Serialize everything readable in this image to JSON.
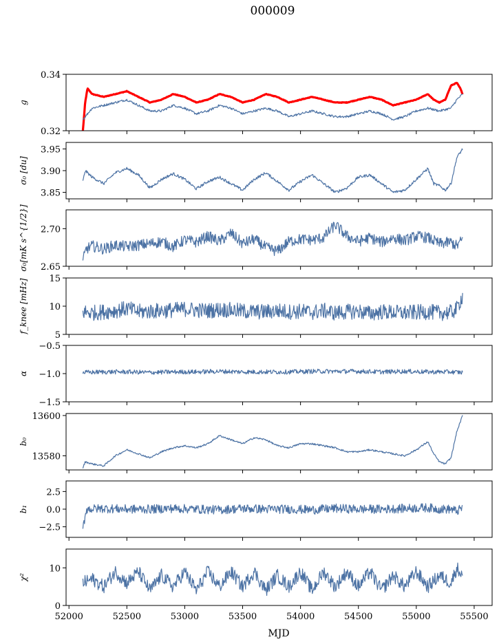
{
  "title": "000009",
  "xlabel": "MJD",
  "chart_data": {
    "type": "line",
    "title": "000009",
    "x_axis": {
      "label": "MJD",
      "range": [
        51975,
        55655
      ],
      "ticks": [
        52000,
        52500,
        53000,
        53500,
        54000,
        54500,
        55000,
        55500
      ],
      "tick_labels": [
        "52000",
        "52500",
        "53000",
        "53500",
        "54000",
        "54500",
        "55000",
        "55500"
      ]
    },
    "series_color": "#4c72a4",
    "data_x_range": [
      52120,
      55400
    ],
    "panels": [
      {
        "ylabel": "g",
        "ylim": [
          0.32,
          0.34
        ],
        "ticks": [
          0.32,
          0.34
        ],
        "tick_labels": [
          "0.32",
          "0.34"
        ],
        "series": [
          {
            "color": "#ff0000",
            "x": [
              52120,
              52140,
              52160,
              52200,
              52300,
              52400,
              52500,
              52600,
              52700,
              52800,
              52900,
              53000,
              53100,
              53200,
              53300,
              53400,
              53500,
              53600,
              53700,
              53800,
              53900,
              54000,
              54100,
              54200,
              54300,
              54400,
              54500,
              54600,
              54700,
              54800,
              54900,
              55000,
              55100,
              55150,
              55200,
              55250,
              55300,
              55350,
              55380,
              55400
            ],
            "y": [
              0.32,
              0.33,
              0.335,
              0.333,
              0.332,
              0.333,
              0.334,
              0.332,
              0.33,
              0.331,
              0.333,
              0.332,
              0.33,
              0.331,
              0.333,
              0.332,
              0.33,
              0.331,
              0.333,
              0.332,
              0.33,
              0.331,
              0.332,
              0.331,
              0.33,
              0.33,
              0.331,
              0.332,
              0.331,
              0.329,
              0.33,
              0.331,
              0.333,
              0.331,
              0.33,
              0.331,
              0.336,
              0.337,
              0.335,
              0.333
            ]
          },
          {
            "color": "#4c72a4",
            "x": [
              52120,
              52200,
              52300,
              52400,
              52500,
              52600,
              52700,
              52800,
              52900,
              53000,
              53100,
              53200,
              53300,
              53400,
              53500,
              53600,
              53700,
              53800,
              53900,
              54000,
              54100,
              54200,
              54300,
              54400,
              54500,
              54600,
              54700,
              54800,
              54900,
              55000,
              55100,
              55200,
              55300,
              55350,
              55400
            ],
            "y": [
              0.324,
              0.328,
              0.329,
              0.33,
              0.331,
              0.329,
              0.327,
              0.327,
              0.329,
              0.328,
              0.326,
              0.327,
              0.329,
              0.328,
              0.326,
              0.327,
              0.328,
              0.327,
              0.325,
              0.326,
              0.327,
              0.326,
              0.325,
              0.325,
              0.326,
              0.327,
              0.326,
              0.324,
              0.325,
              0.327,
              0.328,
              0.327,
              0.328,
              0.331,
              0.333
            ]
          }
        ]
      },
      {
        "ylabel": "σ₀ [du]",
        "ylim": [
          3.835,
          3.965
        ],
        "ticks": [
          3.85,
          3.9,
          3.95
        ],
        "tick_labels": [
          "3.85",
          "3.90",
          "3.95"
        ],
        "series": [
          {
            "color": "#4c72a4",
            "x": [
              52120,
              52140,
              52200,
              52300,
              52400,
              52500,
              52600,
              52700,
              52800,
              52900,
              53000,
              53100,
              53200,
              53300,
              53400,
              53500,
              53600,
              53700,
              53800,
              53900,
              54000,
              54100,
              54200,
              54300,
              54400,
              54500,
              54600,
              54700,
              54800,
              54900,
              55000,
              55100,
              55150,
              55200,
              55250,
              55300,
              55350,
              55400
            ],
            "y": [
              3.875,
              3.9,
              3.885,
              3.87,
              3.895,
              3.905,
              3.89,
              3.86,
              3.88,
              3.893,
              3.88,
              3.858,
              3.875,
              3.885,
              3.87,
              3.855,
              3.88,
              3.895,
              3.875,
              3.855,
              3.875,
              3.89,
              3.87,
              3.85,
              3.86,
              3.885,
              3.89,
              3.87,
              3.85,
              3.855,
              3.88,
              3.905,
              3.87,
              3.865,
              3.855,
              3.87,
              3.93,
              3.95
            ]
          }
        ]
      },
      {
        "ylabel": "σ₀[mK s^{1/2}]",
        "ylim": [
          2.65,
          2.725
        ],
        "ticks": [
          2.65,
          2.7
        ],
        "tick_labels": [
          "2.65",
          "2.70"
        ],
        "series": [
          {
            "color": "#4c72a4",
            "x": [
              52120,
              52150,
              52200,
              52300,
              52400,
              52500,
              52600,
              52700,
              52800,
              52900,
              53000,
              53100,
              53200,
              53300,
              53400,
              53500,
              53600,
              53700,
              53800,
              53900,
              54000,
              54100,
              54200,
              54300,
              54400,
              54500,
              54600,
              54700,
              54800,
              54900,
              55000,
              55100,
              55200,
              55300,
              55350,
              55400
            ],
            "y": [
              2.657,
              2.673,
              2.677,
              2.673,
              2.678,
              2.676,
              2.678,
              2.68,
              2.683,
              2.676,
              2.685,
              2.682,
              2.69,
              2.683,
              2.694,
              2.68,
              2.686,
              2.675,
              2.67,
              2.683,
              2.686,
              2.685,
              2.688,
              2.705,
              2.69,
              2.683,
              2.688,
              2.682,
              2.688,
              2.684,
              2.69,
              2.688,
              2.68,
              2.682,
              2.677,
              2.686
            ]
          }
        ]
      },
      {
        "ylabel": "f_knee [mHz]",
        "ylim": [
          5,
          15
        ],
        "ticks": [
          5,
          10,
          15
        ],
        "tick_labels": [
          "5",
          "10",
          "15"
        ],
        "series": [
          {
            "color": "#4c72a4",
            "x": [
              52120,
              52200,
              52300,
              52400,
              52500,
              52600,
              52700,
              52800,
              52900,
              53000,
              53100,
              53200,
              53300,
              53400,
              53500,
              53600,
              53700,
              53800,
              53900,
              54000,
              54100,
              54200,
              54300,
              54400,
              54500,
              54600,
              54700,
              54800,
              54900,
              55000,
              55100,
              55200,
              55300,
              55350,
              55400
            ],
            "y": [
              9.0,
              8.8,
              9.0,
              9.2,
              9.6,
              9.0,
              9.1,
              9.2,
              9.3,
              9.5,
              9.3,
              9.2,
              9.4,
              9.3,
              9.1,
              9.0,
              9.0,
              9.2,
              9.0,
              9.1,
              8.9,
              9.2,
              8.8,
              9.0,
              9.1,
              8.7,
              9.0,
              8.9,
              8.8,
              8.9,
              9.0,
              8.8,
              8.9,
              9.5,
              11.9
            ]
          }
        ]
      },
      {
        "ylabel": "α",
        "ylim": [
          -1.5,
          -0.5
        ],
        "ticks": [
          -1.5,
          -1.0,
          -0.5
        ],
        "tick_labels": [
          "−1.5",
          "−1.0",
          "−0.5"
        ],
        "series": [
          {
            "color": "#4c72a4",
            "x": [
              52120,
              52300,
              52500,
              52700,
              52900,
              53100,
              53300,
              53500,
              53700,
              53900,
              54100,
              54300,
              54500,
              54700,
              54900,
              55100,
              55300,
              55400
            ],
            "y": [
              -0.98,
              -0.97,
              -0.97,
              -0.98,
              -0.97,
              -0.97,
              -0.96,
              -0.97,
              -0.97,
              -0.97,
              -0.96,
              -0.96,
              -0.96,
              -0.97,
              -0.96,
              -0.97,
              -0.97,
              -0.98
            ]
          }
        ]
      },
      {
        "ylabel": "b₀",
        "ylim": [
          13573,
          13601
        ],
        "ticks": [
          13580,
          13600
        ],
        "tick_labels": [
          "13580",
          "13600"
        ],
        "series": [
          {
            "color": "#4c72a4",
            "x": [
              52120,
              52140,
              52200,
              52300,
              52400,
              52500,
              52600,
              52700,
              52800,
              52900,
              53000,
              53100,
              53200,
              53300,
              53400,
              53500,
              53600,
              53700,
              53800,
              53900,
              54000,
              54100,
              54200,
              54300,
              54400,
              54500,
              54600,
              54700,
              54800,
              54900,
              55000,
              55100,
              55150,
              55200,
              55250,
              55300,
              55350,
              55400
            ],
            "y": [
              13574,
              13577,
              13576,
              13575,
              13580,
              13583,
              13581,
              13579,
              13582,
              13584,
              13585,
              13584,
              13586,
              13590,
              13588,
              13586,
              13589,
              13588,
              13585,
              13584,
              13586,
              13586,
              13585,
              13584,
              13582,
              13582,
              13583,
              13582,
              13581,
              13580,
              13583,
              13587,
              13581,
              13577,
              13576,
              13579,
              13592,
              13600
            ]
          }
        ]
      },
      {
        "ylabel": "b₁",
        "ylim": [
          -4,
          4
        ],
        "ticks": [
          -2.5,
          0.0,
          2.5
        ],
        "tick_labels": [
          "−2.5",
          "0.0",
          "2.5"
        ],
        "series": [
          {
            "color": "#4c72a4",
            "x": [
              52120,
              52150,
              52300,
              52500,
              52700,
              52900,
              53100,
              53300,
              53500,
              53700,
              53900,
              54100,
              54300,
              54500,
              54700,
              54900,
              55100,
              55200,
              55300,
              55350,
              55400
            ],
            "y": [
              -2.8,
              0.0,
              0.1,
              0.0,
              0.0,
              0.1,
              0.0,
              -0.1,
              0.1,
              0.0,
              0.0,
              -0.1,
              0.1,
              0.0,
              0.0,
              0.1,
              0.2,
              0.0,
              0.0,
              -0.3,
              0.2
            ]
          }
        ]
      },
      {
        "ylabel": "χ²",
        "ylim": [
          0,
          15
        ],
        "ticks": [
          0,
          10
        ],
        "tick_labels": [
          "0",
          "10"
        ],
        "series": [
          {
            "color": "#4c72a4",
            "x": [
              52120,
              52200,
              52300,
              52400,
              52500,
              52600,
              52700,
              52800,
              52900,
              53000,
              53100,
              53200,
              53300,
              53400,
              53500,
              53600,
              53700,
              53800,
              53900,
              54000,
              54100,
              54200,
              54300,
              54400,
              54500,
              54600,
              54700,
              54800,
              54900,
              55000,
              55100,
              55200,
              55300,
              55350,
              55400
            ],
            "y": [
              6,
              7,
              5,
              9,
              6,
              9,
              4,
              8,
              5,
              9,
              4,
              9,
              5,
              9,
              5,
              9,
              4,
              8,
              5,
              9,
              4,
              9,
              5,
              9,
              5,
              9,
              4,
              8,
              5,
              9,
              5,
              8,
              6,
              10,
              8
            ]
          }
        ]
      }
    ]
  }
}
